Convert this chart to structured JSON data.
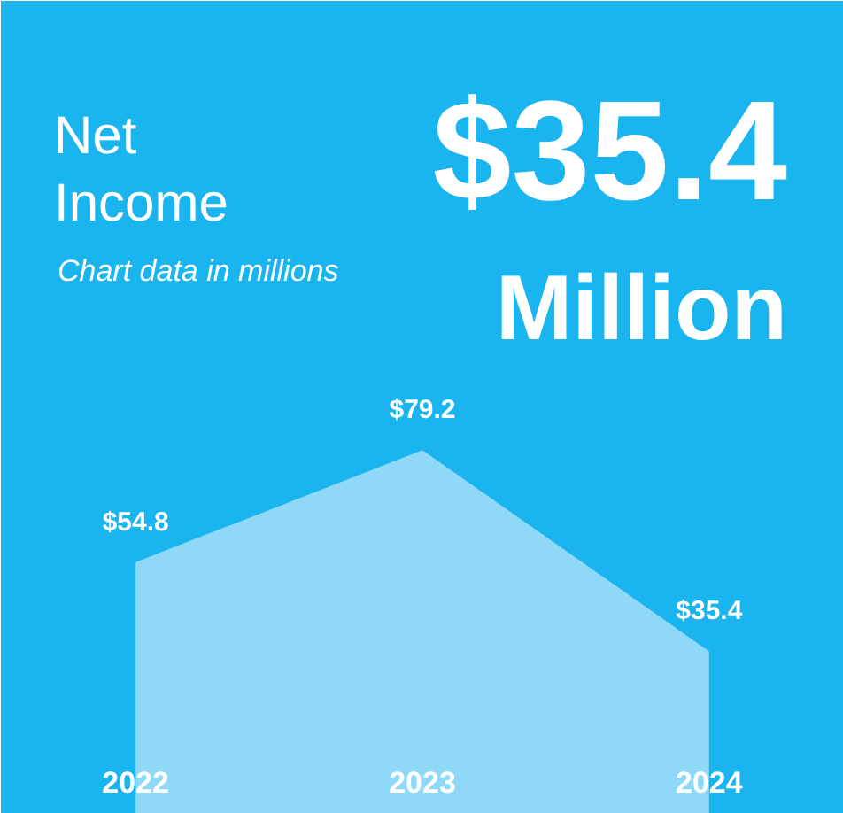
{
  "chart_data": {
    "type": "area",
    "title": "Net\nIncome",
    "subtitle": "Chart data in millions",
    "annotations": [
      "$35.4",
      "Million"
    ],
    "categories": [
      "2022",
      "2023",
      "2024"
    ],
    "values": [
      54.8,
      79.2,
      35.4
    ],
    "value_labels": [
      "$54.8",
      "$79.2",
      "$35.4"
    ],
    "color": "#8fd8f7",
    "ylim": [
      0,
      177
    ]
  }
}
